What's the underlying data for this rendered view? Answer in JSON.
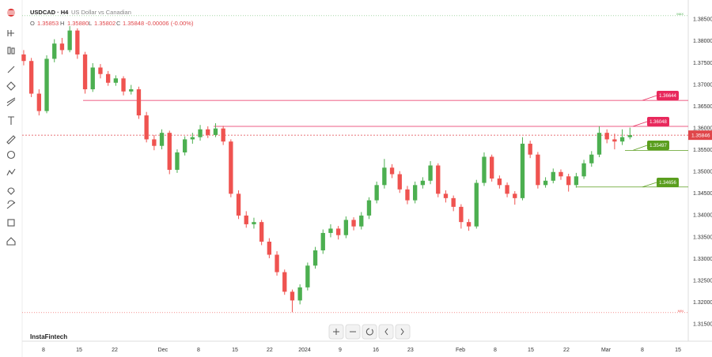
{
  "chart_data": {
    "type": "candlestick",
    "header": {
      "symbol": "USDCAD · H4",
      "name": "US Dollar vs Canadian",
      "o_label": "O",
      "o": "1.35853",
      "h_label": "H",
      "h": "1.35880",
      "l_label": "L",
      "l": "1.35802",
      "c_label": "C",
      "c": "1.35848",
      "change": "-0.00006 (-0.00%)"
    },
    "logo": "InstaFintech",
    "up_color": "#4caf50",
    "down_color": "#ef5350",
    "ylim": [
      1.3115,
      1.3886
    ],
    "yticks": [
      {
        "value": 1.385,
        "label": "1.38500"
      },
      {
        "value": 1.38,
        "label": "1.38000"
      },
      {
        "value": 1.375,
        "label": "1.37500"
      },
      {
        "value": 1.37,
        "label": "1.37000"
      },
      {
        "value": 1.365,
        "label": "1.36500"
      },
      {
        "value": 1.36,
        "label": "1.36000"
      },
      {
        "value": 1.355,
        "label": "1.35500"
      },
      {
        "value": 1.35,
        "label": "1.35000"
      },
      {
        "value": 1.345,
        "label": "1.34500"
      },
      {
        "value": 1.34,
        "label": "1.34000"
      },
      {
        "value": 1.335,
        "label": "1.33500"
      },
      {
        "value": 1.33,
        "label": "1.33000"
      },
      {
        "value": 1.325,
        "label": "1.32500"
      },
      {
        "value": 1.32,
        "label": "1.32000"
      },
      {
        "value": 1.315,
        "label": "1.31500"
      }
    ],
    "xlim": [
      -0.2,
      86.6
    ],
    "xticks": [
      {
        "value": 2.58,
        "label": "8"
      },
      {
        "value": 7.22,
        "label": "15"
      },
      {
        "value": 11.86,
        "label": "22"
      },
      {
        "value": 18.14,
        "label": "Dec"
      },
      {
        "value": 22.78,
        "label": "8"
      },
      {
        "value": 27.53,
        "label": "15"
      },
      {
        "value": 32.06,
        "label": "22"
      },
      {
        "value": 36.6,
        "label": "2024"
      },
      {
        "value": 41.24,
        "label": "9"
      },
      {
        "value": 45.88,
        "label": "16"
      },
      {
        "value": 50.41,
        "label": "23"
      },
      {
        "value": 56.91,
        "label": "Feb"
      },
      {
        "value": 61.44,
        "label": "8"
      },
      {
        "value": 66.08,
        "label": "15"
      },
      {
        "value": 70.72,
        "label": "22"
      },
      {
        "value": 75.88,
        "label": "Mar"
      },
      {
        "value": 80.62,
        "label": "8"
      },
      {
        "value": 85.26,
        "label": "15"
      }
    ],
    "grid": false,
    "current_price": {
      "value": 1.35846,
      "color": "#e0464a"
    },
    "max_line": {
      "label": "MAX",
      "value": 1.3859,
      "color": "#4caf50"
    },
    "min_line": {
      "label": "MIN",
      "value": 1.3177,
      "color": "#ef5350"
    },
    "levels": [
      {
        "value": 1.36644,
        "color": "#e8295c"
      },
      {
        "value": 1.36048,
        "color": "#e8295c"
      },
      {
        "value": 1.35497,
        "color": "#5a9e1e"
      },
      {
        "value": 1.34656,
        "color": "#5a9e1e"
      }
    ],
    "candles": [
      [
        1.377,
        1.378,
        1.3745,
        1.3755
      ],
      [
        1.3755,
        1.3762,
        1.3672,
        1.368
      ],
      [
        1.368,
        1.369,
        1.363,
        1.364
      ],
      [
        1.364,
        1.3768,
        1.3635,
        1.376
      ],
      [
        1.376,
        1.3805,
        1.3752,
        1.3795
      ],
      [
        1.3795,
        1.3808,
        1.377,
        1.378
      ],
      [
        1.378,
        1.3835,
        1.3775,
        1.3825
      ],
      [
        1.3825,
        1.383,
        1.376,
        1.377
      ],
      [
        1.377,
        1.3776,
        1.368,
        1.369
      ],
      [
        1.369,
        1.375,
        1.3684,
        1.374
      ],
      [
        1.374,
        1.3748,
        1.3715,
        1.3725
      ],
      [
        1.3725,
        1.3732,
        1.3698,
        1.3705
      ],
      [
        1.3705,
        1.3722,
        1.3698,
        1.3715
      ],
      [
        1.3715,
        1.372,
        1.3676,
        1.3685
      ],
      [
        1.3685,
        1.37,
        1.3678,
        1.369
      ],
      [
        1.369,
        1.3696,
        1.3622,
        1.363
      ],
      [
        1.363,
        1.3638,
        1.3568,
        1.3575
      ],
      [
        1.3575,
        1.3585,
        1.355,
        1.356
      ],
      [
        1.356,
        1.3598,
        1.3552,
        1.359
      ],
      [
        1.359,
        1.3595,
        1.3495,
        1.3505
      ],
      [
        1.3505,
        1.3552,
        1.3498,
        1.3545
      ],
      [
        1.3545,
        1.3582,
        1.3538,
        1.3575
      ],
      [
        1.3575,
        1.359,
        1.3565,
        1.358
      ],
      [
        1.358,
        1.3608,
        1.3572,
        1.3598
      ],
      [
        1.3598,
        1.3605,
        1.3578,
        1.3585
      ],
      [
        1.3585,
        1.3612,
        1.358,
        1.36
      ],
      [
        1.36,
        1.3606,
        1.3562,
        1.357
      ],
      [
        1.357,
        1.3575,
        1.3442,
        1.345
      ],
      [
        1.345,
        1.3458,
        1.3392,
        1.34
      ],
      [
        1.34,
        1.341,
        1.3372,
        1.338
      ],
      [
        1.338,
        1.3395,
        1.337,
        1.3385
      ],
      [
        1.3385,
        1.339,
        1.3332,
        1.334
      ],
      [
        1.334,
        1.3348,
        1.3302,
        1.331
      ],
      [
        1.331,
        1.3318,
        1.3262,
        1.327
      ],
      [
        1.327,
        1.3276,
        1.3218,
        1.3225
      ],
      [
        1.3225,
        1.323,
        1.3178,
        1.3205
      ],
      [
        1.3205,
        1.3242,
        1.3196,
        1.3235
      ],
      [
        1.3235,
        1.3292,
        1.3228,
        1.3285
      ],
      [
        1.3285,
        1.3328,
        1.3278,
        1.332
      ],
      [
        1.332,
        1.3368,
        1.3312,
        1.336
      ],
      [
        1.336,
        1.338,
        1.335,
        1.337
      ],
      [
        1.337,
        1.3376,
        1.3345,
        1.3355
      ],
      [
        1.3355,
        1.3398,
        1.3348,
        1.339
      ],
      [
        1.339,
        1.3396,
        1.3366,
        1.3375
      ],
      [
        1.3375,
        1.3408,
        1.3368,
        1.34
      ],
      [
        1.34,
        1.3442,
        1.3392,
        1.3435
      ],
      [
        1.3435,
        1.3478,
        1.3428,
        1.347
      ],
      [
        1.347,
        1.353,
        1.3462,
        1.351
      ],
      [
        1.351,
        1.3518,
        1.3486,
        1.3495
      ],
      [
        1.3495,
        1.3502,
        1.3452,
        1.346
      ],
      [
        1.346,
        1.3468,
        1.3426,
        1.3435
      ],
      [
        1.3435,
        1.3478,
        1.3428,
        1.347
      ],
      [
        1.347,
        1.3488,
        1.3462,
        1.348
      ],
      [
        1.348,
        1.3525,
        1.3472,
        1.3515
      ],
      [
        1.3515,
        1.352,
        1.3442,
        1.345
      ],
      [
        1.345,
        1.3458,
        1.343,
        1.344
      ],
      [
        1.344,
        1.3446,
        1.341,
        1.342
      ],
      [
        1.342,
        1.3426,
        1.337,
        1.3385
      ],
      [
        1.3385,
        1.3392,
        1.3365,
        1.3375
      ],
      [
        1.3375,
        1.3482,
        1.337,
        1.3475
      ],
      [
        1.3475,
        1.3545,
        1.3468,
        1.3535
      ],
      [
        1.3535,
        1.354,
        1.3478,
        1.3485
      ],
      [
        1.3485,
        1.3492,
        1.3462,
        1.347
      ],
      [
        1.347,
        1.3476,
        1.3442,
        1.345
      ],
      [
        1.345,
        1.3456,
        1.3425,
        1.344
      ],
      [
        1.344,
        1.358,
        1.3435,
        1.3565
      ],
      [
        1.3565,
        1.3572,
        1.3532,
        1.354
      ],
      [
        1.354,
        1.3546,
        1.3462,
        1.347
      ],
      [
        1.347,
        1.3488,
        1.3464,
        1.348
      ],
      [
        1.348,
        1.3508,
        1.3474,
        1.35
      ],
      [
        1.35,
        1.3506,
        1.3482,
        1.349
      ],
      [
        1.349,
        1.3496,
        1.3455,
        1.347
      ],
      [
        1.347,
        1.3498,
        1.3464,
        1.349
      ],
      [
        1.349,
        1.3528,
        1.3484,
        1.352
      ],
      [
        1.352,
        1.3548,
        1.3512,
        1.354
      ],
      [
        1.354,
        1.3605,
        1.3534,
        1.359
      ],
      [
        1.359,
        1.3598,
        1.3566,
        1.3575
      ],
      [
        1.3575,
        1.3588,
        1.3552,
        1.357
      ],
      [
        1.357,
        1.3598,
        1.3562,
        1.358
      ],
      [
        1.358,
        1.3602,
        1.3575,
        1.35846
      ]
    ]
  }
}
